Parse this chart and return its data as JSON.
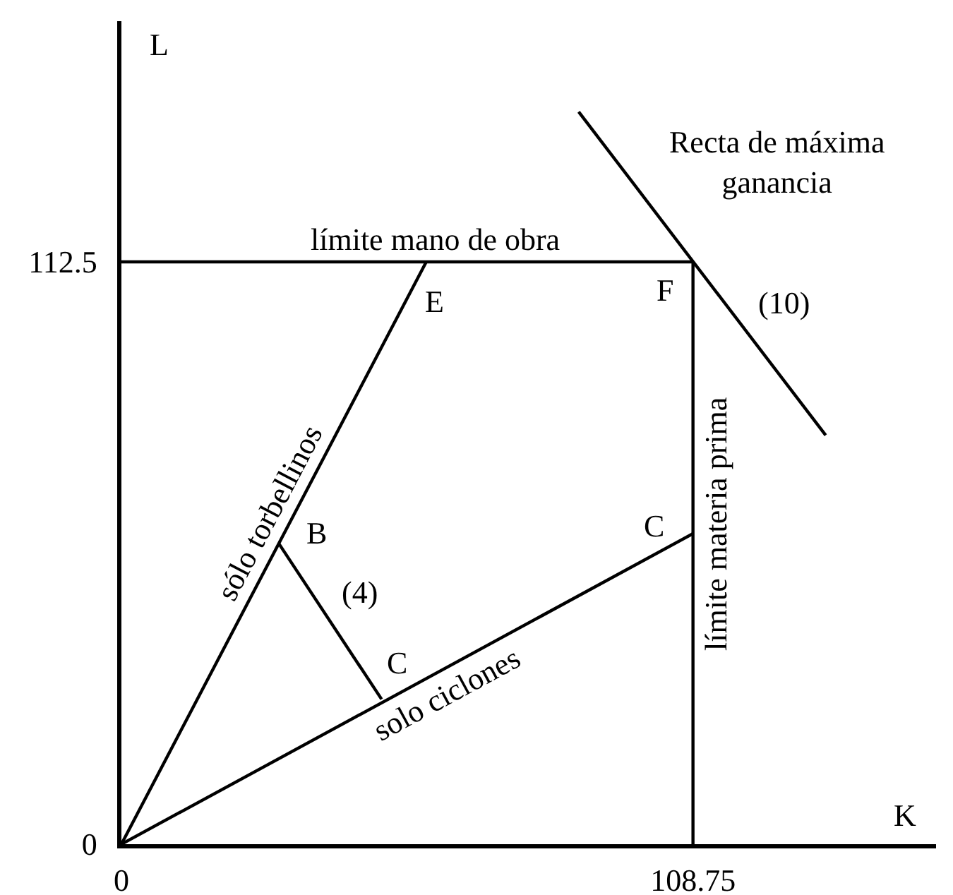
{
  "chart_data": {
    "type": "line",
    "xlabel": "K",
    "ylabel": "L",
    "xlim": [
      0,
      155
    ],
    "ylim": [
      0,
      159
    ],
    "xticks": [
      0,
      108.75
    ],
    "yticks": [
      0,
      112.5
    ],
    "series": [
      {
        "name": "sólo torbellinos",
        "color": "#000000",
        "x": [
          0,
          58
        ],
        "values": [
          0,
          112.5
        ]
      },
      {
        "name": "solo ciclones",
        "color": "#000000",
        "x": [
          0,
          108.75
        ],
        "values": [
          0,
          60
        ]
      },
      {
        "name": "límite mano de obra",
        "color": "#000000",
        "x": [
          0,
          108.75
        ],
        "values": [
          112.5,
          112.5
        ]
      },
      {
        "name": "límite materia prima",
        "color": "#000000",
        "x": [
          108.75,
          108.75
        ],
        "values": [
          0,
          112.5
        ]
      },
      {
        "color": "#000000",
        "x": [
          30,
          49.5
        ],
        "values": [
          58,
          28
        ]
      },
      {
        "color": "#000000",
        "x": [
          87,
          134
        ],
        "values": [
          141.5,
          79
        ]
      }
    ],
    "annotations": [
      {
        "text": "E",
        "x": 58,
        "y": 112.5
      },
      {
        "text": "F",
        "x": 108.75,
        "y": 112.5
      },
      {
        "text": "C",
        "x": 108.75,
        "y": 60
      },
      {
        "text": "B",
        "x": 30,
        "y": 58
      },
      {
        "text": "(4)",
        "x": 38.9,
        "y": 44.3
      },
      {
        "text": "C",
        "x": 49.5,
        "y": 28
      },
      {
        "text": "(10)",
        "x": 119,
        "y": 98.9
      },
      {
        "text": "Recta de máxima\nganancia",
        "x": 105.5,
        "y": 116.9
      }
    ]
  }
}
